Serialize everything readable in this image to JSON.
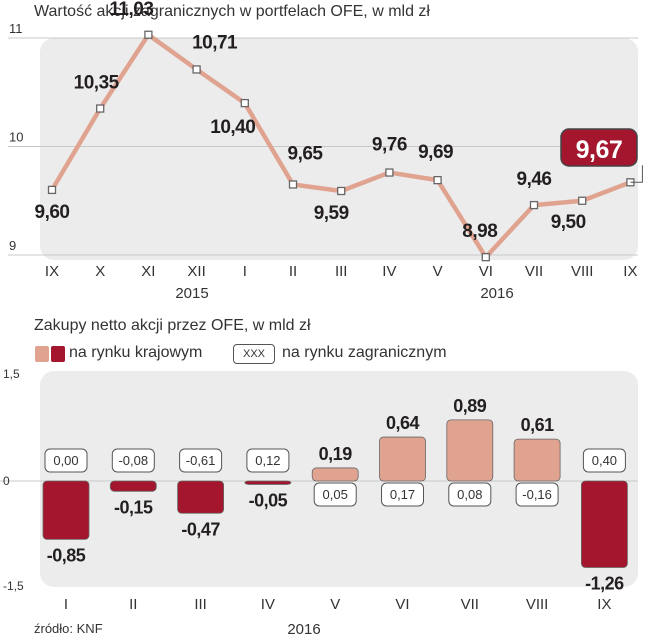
{
  "chart_data": [
    {
      "type": "line",
      "title": "Wartość akcji zagranicznych w portfelach OFE, w mld zł",
      "categories": [
        "IX",
        "X",
        "XI",
        "XII",
        "I",
        "II",
        "III",
        "IV",
        "V",
        "VI",
        "VII",
        "VIII",
        "IX"
      ],
      "year_labels": [
        "2015",
        "2016"
      ],
      "values": [
        9.6,
        10.35,
        11.03,
        10.71,
        10.4,
        9.65,
        9.59,
        9.76,
        9.69,
        8.98,
        9.46,
        9.5,
        9.67
      ],
      "value_labels": [
        "9,60",
        "10,35",
        "11,03",
        "10,71",
        "10,40",
        "9,65",
        "9,59",
        "9,76",
        "9,69",
        "8,98",
        "9,46",
        "9,50",
        "9,67"
      ],
      "y_ticks": [
        "9",
        "10",
        "11"
      ],
      "ylim": [
        9,
        11
      ],
      "colors": {
        "line": "#e0a390",
        "highlight": "#a3162d"
      }
    },
    {
      "type": "bar",
      "title": "Zakupy netto  akcji przez OFE, w mld zł",
      "legend": {
        "domestic": "na rynku krajowym",
        "foreign": "na rynku zagranicznym",
        "foreign_sample": "XXX"
      },
      "categories": [
        "I",
        "II",
        "III",
        "IV",
        "V",
        "VI",
        "VII",
        "VIII",
        "IX"
      ],
      "year_label": "2016",
      "series": [
        {
          "name": "na rynku krajowym",
          "values": [
            -0.85,
            -0.15,
            -0.47,
            -0.05,
            0.19,
            0.64,
            0.89,
            0.61,
            -1.26
          ],
          "labels": [
            "-0,85",
            "-0,15",
            "-0,47",
            "-0,05",
            "0,19",
            "0,64",
            "0,89",
            "0,61",
            "-1,26"
          ]
        },
        {
          "name": "na rynku zagranicznym",
          "values": [
            0.0,
            -0.08,
            -0.61,
            0.12,
            0.05,
            0.17,
            0.08,
            -0.16,
            0.4
          ],
          "labels": [
            "0,00",
            "-0,08",
            "-0,61",
            "0,12",
            "0,05",
            "0,17",
            "0,08",
            "-0,16",
            "0,40"
          ]
        }
      ],
      "y_ticks": [
        "1,5",
        "0",
        "-1,5"
      ],
      "ylim": [
        -1.5,
        1.5
      ],
      "colors": {
        "positive": "#e0a390",
        "negative": "#a3162d"
      }
    }
  ],
  "source": "źródło: KNF"
}
